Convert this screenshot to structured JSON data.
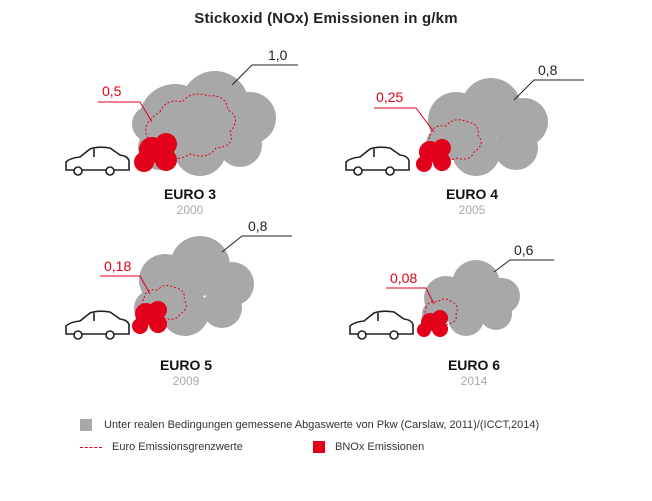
{
  "title": "Stickoxid (NOx) Emissionen in g/km",
  "colors": {
    "real_cloud": "#a8a8a8",
    "limit_outline": "#e2001a",
    "bnox_cloud": "#e2001a",
    "car_outline": "#222222"
  },
  "panels": [
    {
      "name": "EURO 3",
      "year": "2000",
      "real_value": "1,0",
      "limit_value": "0,5"
    },
    {
      "name": "EURO 4",
      "year": "2005",
      "real_value": "0,8",
      "limit_value": "0,25"
    },
    {
      "name": "EURO 5",
      "year": "2009",
      "real_value": "0,8",
      "limit_value": "0,18"
    },
    {
      "name": "EURO 6",
      "year": "2014",
      "real_value": "0,6",
      "limit_value": "0,08"
    }
  ],
  "legend": {
    "real": "Unter realen Bedingungen gemessene Abgaswerte von Pkw (Carslaw, 2011)/(ICCT,2014)",
    "limit": "Euro Emissionsgrenzwerte",
    "bnox": "BNOx Emissionen"
  },
  "icons": [
    "car-icon",
    "grey-cloud",
    "red-cloud",
    "dashed-cloud"
  ]
}
